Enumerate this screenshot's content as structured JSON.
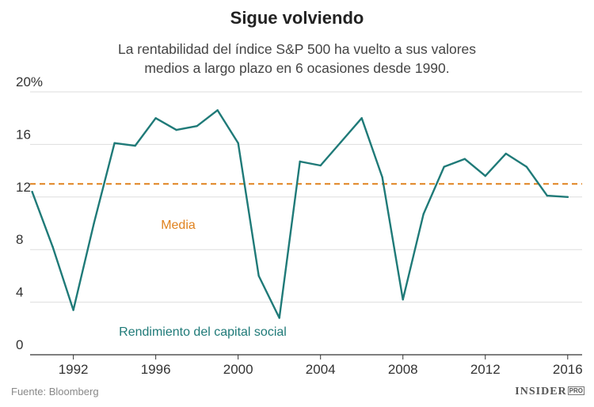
{
  "title": "Sigue volviendo",
  "subtitle_line1": "La rentabilidad del índice S&P 500 ha vuelto a sus valores",
  "subtitle_line2": "medios a largo plazo en 6 ocasiones desde 1990.",
  "source": "Fuente: Bloomberg",
  "brand": {
    "name": "INSIDER",
    "tag": "PRO"
  },
  "colors": {
    "series": "#1f7a78",
    "mean": "#e0821e",
    "grid": "#dddddd",
    "axis": "#333333"
  },
  "chart_data": {
    "type": "line",
    "title": "Sigue volviendo",
    "xlabel": "",
    "ylabel": "",
    "xlim": [
      1989.9,
      2016.7
    ],
    "ylim": [
      0,
      20
    ],
    "grid": true,
    "x_ticks": [
      1992,
      1996,
      2000,
      2004,
      2008,
      2012,
      2016
    ],
    "y_ticks": [
      {
        "value": 0,
        "label": "0"
      },
      {
        "value": 4,
        "label": "4"
      },
      {
        "value": 8,
        "label": "8"
      },
      {
        "value": 12,
        "label": "12"
      },
      {
        "value": 16,
        "label": "16"
      },
      {
        "value": 20,
        "label": "20%"
      }
    ],
    "series": [
      {
        "name": "Rendimiento del capital social",
        "x": [
          1990,
          1991,
          1992,
          1993,
          1994,
          1995,
          1996,
          1997,
          1998,
          1999,
          2000,
          2001,
          2002,
          2003,
          2004,
          2005,
          2006,
          2007,
          2008,
          2009,
          2010,
          2011,
          2012,
          2013,
          2014,
          2015,
          2016
        ],
        "values": [
          12.4,
          8.2,
          3.4,
          10.0,
          16.1,
          15.9,
          18.0,
          17.1,
          17.4,
          18.6,
          16.1,
          6.0,
          2.8,
          14.7,
          14.4,
          16.2,
          18.0,
          13.5,
          4.2,
          10.7,
          14.3,
          14.9,
          13.6,
          15.3,
          14.3,
          12.1,
          12.0
        ]
      }
    ],
    "mean": {
      "name": "Media",
      "value": 13.0
    },
    "annotations": [
      "Media",
      "Rendimiento del capital social"
    ]
  }
}
